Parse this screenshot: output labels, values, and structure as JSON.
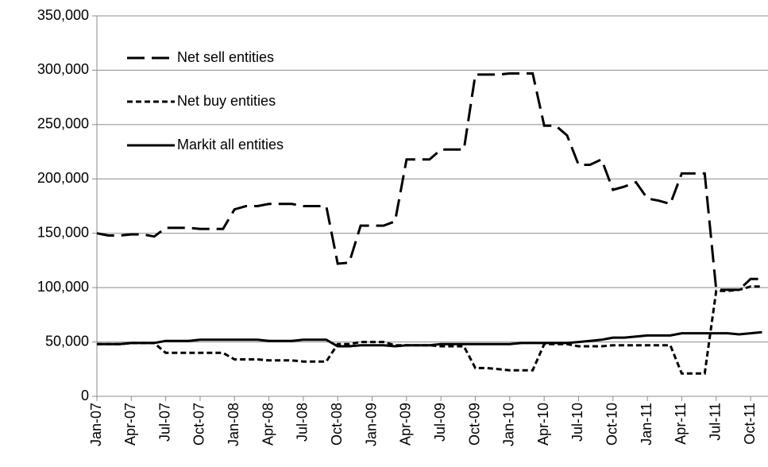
{
  "chart_data": {
    "type": "line",
    "categories": [
      "Jan-07",
      null,
      null,
      "Apr-07",
      null,
      null,
      "Jul-07",
      null,
      null,
      "Oct-07",
      null,
      null,
      "Jan-08",
      null,
      null,
      "Apr-08",
      null,
      null,
      "Jul-08",
      null,
      null,
      "Oct-08",
      null,
      null,
      "Jan-09",
      null,
      null,
      "Apr-09",
      null,
      null,
      "Jul-09",
      null,
      null,
      "Oct-09",
      null,
      null,
      "Jan-10",
      null,
      null,
      "Apr-10",
      null,
      null,
      "Jul-10",
      null,
      null,
      "Oct-10",
      null,
      null,
      "Jan-11",
      null,
      null,
      "Apr-11",
      null,
      null,
      "Jul-11",
      null,
      null,
      "Oct-11",
      null
    ],
    "series": [
      {
        "name": "Net sell entities",
        "color": "#000000",
        "dash": "long",
        "values": [
          150000,
          148000,
          148000,
          149000,
          149000,
          147000,
          155000,
          155000,
          155000,
          154000,
          154000,
          154000,
          172000,
          175000,
          175000,
          177000,
          177000,
          177000,
          175000,
          175000,
          175000,
          122000,
          123000,
          157000,
          157000,
          157000,
          161000,
          218000,
          218000,
          218000,
          227000,
          227000,
          227000,
          296000,
          296000,
          296000,
          297000,
          297000,
          297000,
          249000,
          249000,
          240000,
          213000,
          213000,
          218000,
          190000,
          193000,
          197000,
          182000,
          180000,
          177000,
          205000,
          205000,
          205000,
          98000,
          98000,
          98000,
          108000,
          108000
        ]
      },
      {
        "name": "Net buy entities",
        "color": "#000000",
        "dash": "short",
        "values": [
          48000,
          48000,
          48000,
          49000,
          49000,
          49000,
          40000,
          40000,
          40000,
          40000,
          40000,
          40000,
          34000,
          34000,
          34000,
          33000,
          33000,
          33000,
          32000,
          32000,
          32000,
          48000,
          48000,
          50000,
          50000,
          50000,
          47000,
          47000,
          47000,
          47000,
          46000,
          46000,
          46000,
          26000,
          26000,
          25000,
          24000,
          24000,
          24000,
          48000,
          48000,
          48000,
          46000,
          46000,
          46000,
          47000,
          47000,
          47000,
          47000,
          47000,
          47000,
          21000,
          21000,
          21000,
          97000,
          97000,
          98000,
          101000,
          101000
        ]
      },
      {
        "name": "Markit all entities",
        "color": "#000000",
        "dash": "solid",
        "values": [
          48000,
          48000,
          48000,
          49000,
          49000,
          49000,
          51000,
          51000,
          51000,
          52000,
          52000,
          52000,
          52000,
          52000,
          52000,
          51000,
          51000,
          51000,
          52000,
          52000,
          52000,
          46000,
          46000,
          47000,
          47000,
          47000,
          46000,
          47000,
          47000,
          47000,
          48000,
          48000,
          48000,
          48000,
          48000,
          48000,
          48000,
          49000,
          49000,
          49000,
          49000,
          49000,
          50000,
          51000,
          52000,
          54000,
          54000,
          55000,
          56000,
          56000,
          56000,
          58000,
          58000,
          58000,
          58000,
          58000,
          57000,
          58000,
          59000
        ]
      }
    ],
    "ylim": [
      0,
      350000
    ],
    "yticks": [
      0,
      {
        "value": 50000,
        "label": "50,000"
      },
      {
        "value": 100000,
        "label": "100,000"
      },
      {
        "value": 150000,
        "label": "150,000"
      },
      {
        "value": 200000,
        "label": "200,000"
      },
      {
        "value": 250000,
        "label": "250,000"
      },
      {
        "value": 300000,
        "label": "300,000"
      },
      {
        "value": 350000,
        "label": "350,000"
      }
    ],
    "grid": true,
    "legend": "upper left"
  }
}
